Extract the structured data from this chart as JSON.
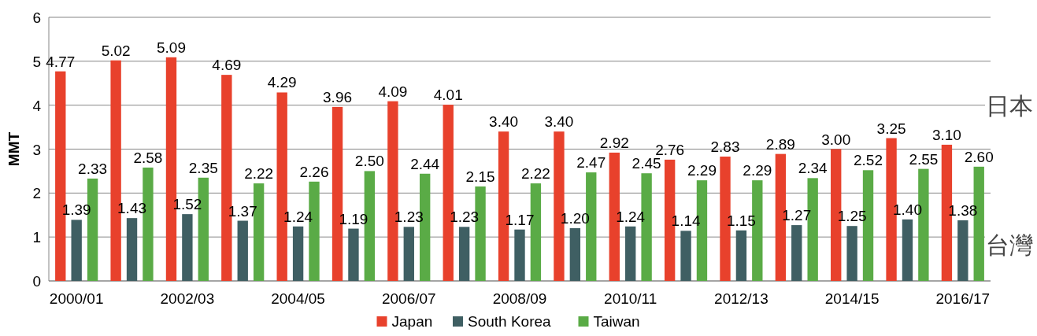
{
  "chart_data": {
    "type": "bar",
    "ylabel": "MMT",
    "categories": [
      "2000/01",
      null,
      "2002/03",
      null,
      "2004/05",
      null,
      "2006/07",
      null,
      "2008/09",
      null,
      "2010/11",
      null,
      "2012/13",
      null,
      "2014/15",
      null,
      "2016/17"
    ],
    "series": [
      {
        "name": "Japan",
        "color": "#e8412c",
        "values": [
          4.77,
          5.02,
          5.09,
          4.69,
          4.29,
          3.96,
          4.09,
          4.01,
          3.4,
          3.4,
          2.92,
          2.76,
          2.83,
          2.89,
          3.0,
          3.25,
          3.1
        ],
        "value_labels": [
          "4.77",
          "5.02",
          "5.09",
          "4.69",
          "4.29",
          "3.96",
          "4.09",
          "4.01",
          "3.40",
          "3.40",
          "2.92",
          "2.76",
          "2.83",
          "2.89",
          "3.00",
          "3.25",
          "3.10"
        ]
      },
      {
        "name": "South Korea",
        "color": "#3f5f63",
        "values": [
          1.39,
          1.43,
          1.52,
          1.37,
          1.24,
          1.19,
          1.23,
          1.23,
          1.17,
          1.2,
          1.24,
          1.14,
          1.15,
          1.27,
          1.25,
          1.4,
          1.38
        ],
        "value_labels": [
          "1.39",
          "1.43",
          "1.52",
          "1.37",
          "1.24",
          "1.19",
          "1.23",
          "1.23",
          "1.17",
          "1.20",
          "1.24",
          "1.14",
          "1.15",
          "1.27",
          "1.25",
          "1.40",
          "1.38"
        ]
      },
      {
        "name": "Taiwan",
        "color": "#5aab46",
        "values": [
          2.33,
          2.58,
          2.35,
          2.22,
          2.26,
          2.5,
          2.44,
          2.15,
          2.22,
          2.47,
          2.45,
          2.29,
          2.29,
          2.34,
          2.52,
          2.55,
          2.6
        ],
        "value_labels": [
          "2.33",
          "2.58",
          "2.35",
          "2.22",
          "2.26",
          "2.50",
          "2.44",
          "2.15",
          "2.22",
          "2.47",
          "2.45",
          "2.29",
          "2.29",
          "2.34",
          "2.52",
          "2.55",
          "2.60"
        ]
      }
    ],
    "ylim": [
      0,
      6
    ],
    "yticks": [
      0,
      1,
      2,
      3,
      4,
      5,
      6
    ],
    "grid": "y",
    "legend": "bottom",
    "annotations": [
      "日本",
      "台灣"
    ]
  }
}
